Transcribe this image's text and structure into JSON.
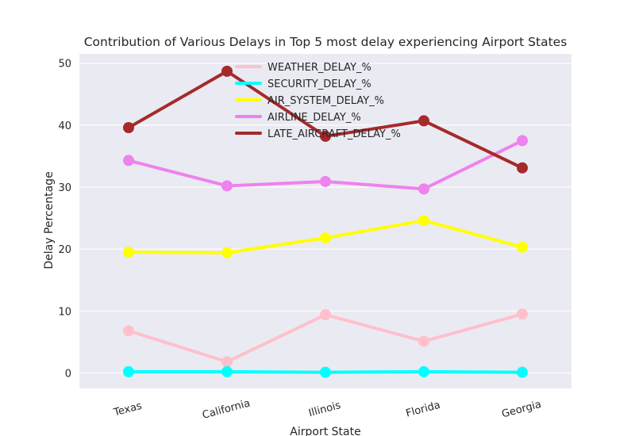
{
  "chart_data": {
    "type": "line",
    "title": "Contribution of Various Delays in Top 5 most delay experiencing Airport States",
    "xlabel": "Airport State",
    "ylabel": "Delay Percentage",
    "categories": [
      "Texas",
      "California",
      "Illinois",
      "Florida",
      "Georgia"
    ],
    "ylim": [
      -2.5,
      51.5
    ],
    "yticks": [
      0,
      10,
      20,
      30,
      40,
      50
    ],
    "grid": true,
    "legend_position": "top-center",
    "series": [
      {
        "name": "WEATHER_DELAY_%",
        "color": "#ffc0cb",
        "values": [
          6.8,
          1.8,
          9.4,
          5.1,
          9.5
        ]
      },
      {
        "name": "SECURITY_DELAY_%",
        "color": "#00ffff",
        "values": [
          0.2,
          0.2,
          0.1,
          0.2,
          0.1
        ]
      },
      {
        "name": "AIR_SYSTEM_DELAY_%",
        "color": "#ffff00",
        "values": [
          19.5,
          19.4,
          21.8,
          24.6,
          20.3
        ]
      },
      {
        "name": "AIRLINE_DELAY_%",
        "color": "#ee82ee",
        "values": [
          34.3,
          30.2,
          30.9,
          29.7,
          37.5
        ]
      },
      {
        "name": "LATE_AIRCRAFT_DELAY_%",
        "color": "#a52a2a",
        "values": [
          39.6,
          48.7,
          38.2,
          40.7,
          33.1
        ]
      }
    ]
  }
}
